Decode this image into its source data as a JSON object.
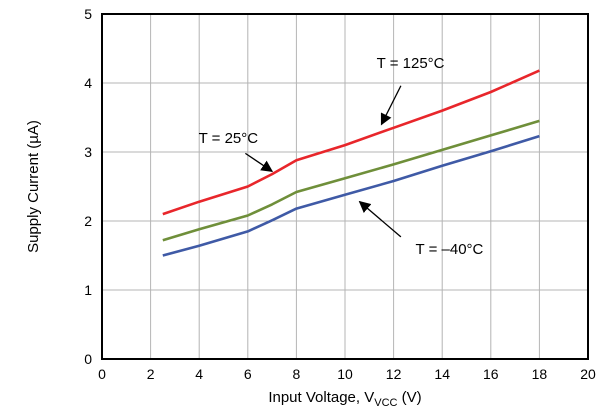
{
  "chart_data": {
    "type": "line",
    "title": "",
    "xlabel": "Input Voltage, V",
    "xlabel_subscript": "VCC",
    "xlabel_unit": " (V)",
    "ylabel": "Supply Current (µA)",
    "xlim": [
      0,
      20
    ],
    "ylim": [
      0,
      5
    ],
    "xticks": [
      "0",
      "2",
      "4",
      "6",
      "8",
      "10",
      "12",
      "14",
      "16",
      "18",
      "20"
    ],
    "yticks": [
      "0",
      "1",
      "2",
      "3",
      "4",
      "5"
    ],
    "grid": true,
    "series": [
      {
        "name": "T = 125°C",
        "color": "#e8262b",
        "points": [
          [
            2.5,
            2.1
          ],
          [
            4,
            2.28
          ],
          [
            6,
            2.5
          ],
          [
            7,
            2.68
          ],
          [
            8,
            2.88
          ],
          [
            10,
            3.1
          ],
          [
            12,
            3.35
          ],
          [
            14,
            3.6
          ],
          [
            16,
            3.87
          ],
          [
            18,
            4.18
          ]
        ]
      },
      {
        "name": "T = 25°C",
        "color": "#6f8f3a",
        "points": [
          [
            2.5,
            1.72
          ],
          [
            4,
            1.88
          ],
          [
            6,
            2.08
          ],
          [
            7,
            2.24
          ],
          [
            8,
            2.42
          ],
          [
            10,
            2.62
          ],
          [
            12,
            2.82
          ],
          [
            14,
            3.03
          ],
          [
            16,
            3.24
          ],
          [
            18,
            3.45
          ]
        ]
      },
      {
        "name": "T = –40°C",
        "color": "#3f5aa6",
        "points": [
          [
            2.5,
            1.5
          ],
          [
            4,
            1.64
          ],
          [
            6,
            1.85
          ],
          [
            7,
            2.01
          ],
          [
            8,
            2.18
          ],
          [
            10,
            2.38
          ],
          [
            12,
            2.58
          ],
          [
            14,
            2.8
          ],
          [
            16,
            3.01
          ],
          [
            18,
            3.23
          ]
        ]
      }
    ],
    "annotations": [
      {
        "text": "T = 125°C",
        "series": 0,
        "label_at": [
          12.7,
          4.22
        ],
        "arrow_from": [
          12.3,
          3.96
        ],
        "arrow_to": [
          11.5,
          3.4
        ]
      },
      {
        "text": "T = 25°C",
        "series": 1,
        "label_at": [
          5.2,
          3.13
        ],
        "arrow_from": [
          5.9,
          2.98
        ],
        "arrow_to": [
          7.0,
          2.72
        ]
      },
      {
        "text": "T = –40°C",
        "series": 2,
        "label_at": [
          14.3,
          1.52
        ],
        "arrow_from": [
          12.3,
          1.77
        ],
        "arrow_to": [
          10.6,
          2.28
        ]
      }
    ]
  }
}
